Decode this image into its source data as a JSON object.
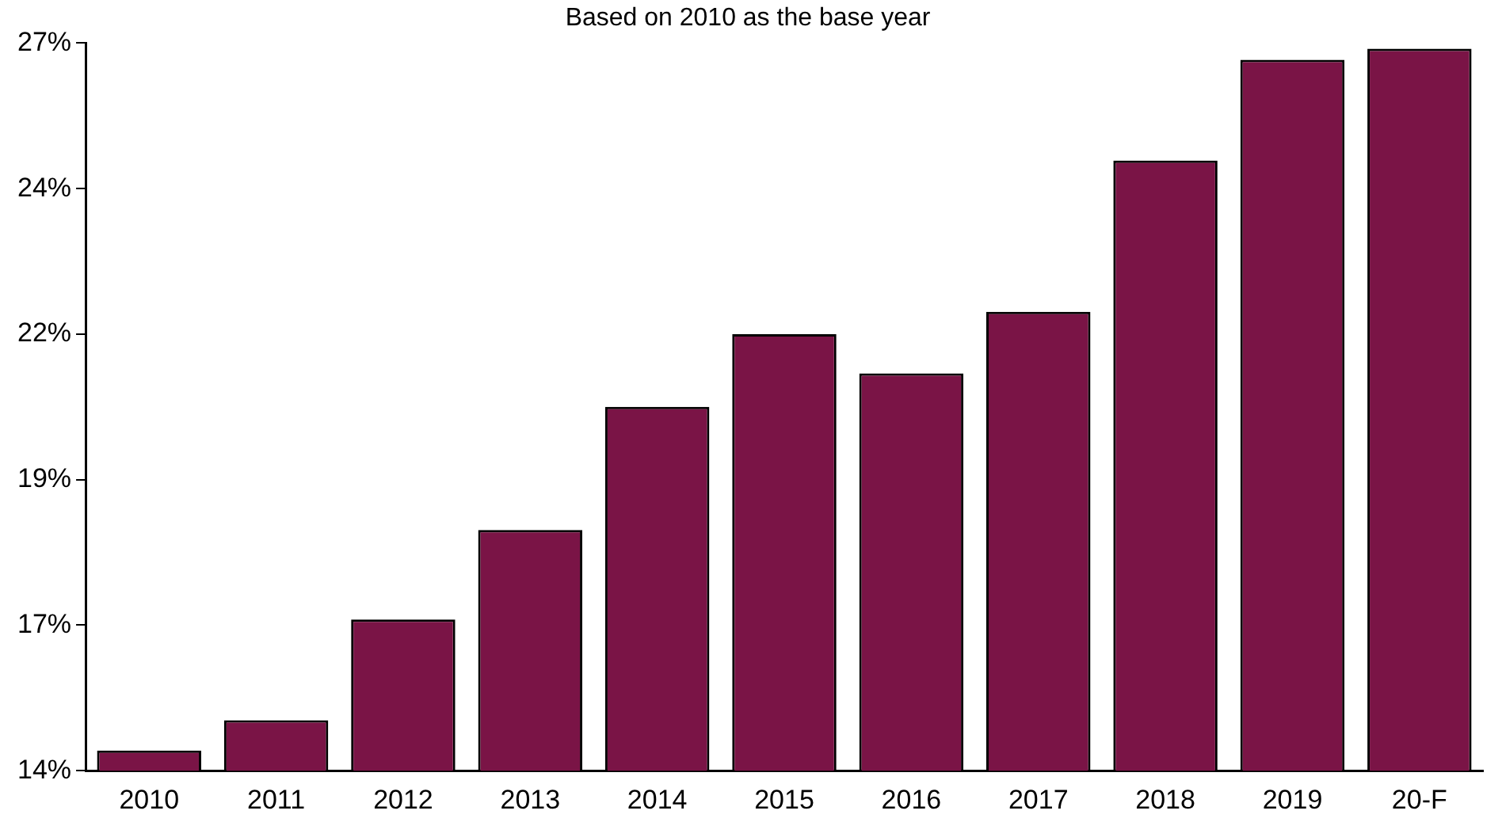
{
  "chart_data": {
    "type": "bar",
    "title": "Based on 2010 as the base year",
    "categories": [
      "2010",
      "2011",
      "2012",
      "2013",
      "2014",
      "2015",
      "2016",
      "2017",
      "2018",
      "2019",
      "20-F"
    ],
    "values": [
      14.36,
      14.9,
      16.7,
      18.3,
      20.5,
      21.8,
      21.1,
      22.2,
      24.9,
      26.7,
      26.9
    ],
    "color": "#7a1446",
    "ylim": [
      14,
      27
    ],
    "yticks": [
      {
        "value": 14,
        "label": "14%"
      },
      {
        "value": 16.6,
        "label": "17%"
      },
      {
        "value": 19.2,
        "label": "19%"
      },
      {
        "value": 21.8,
        "label": "22%"
      },
      {
        "value": 24.4,
        "label": "24%"
      },
      {
        "value": 27,
        "label": "27%"
      }
    ],
    "grid": false
  }
}
